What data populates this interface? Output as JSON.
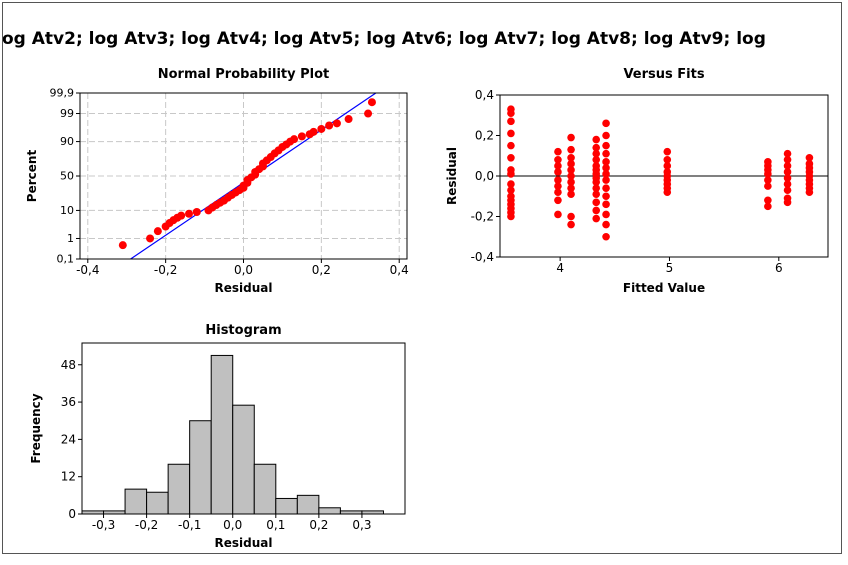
{
  "figure": {
    "suptitle": "og Atv2; log Atv3; log Atv4; log Atv5; log Atv6; log Atv7; log Atv8; log Atv9; log"
  },
  "colors": {
    "point": "#ff0000",
    "fit_line": "#0000ff",
    "bar_fill": "#c0c0c0",
    "grid": "#c8c8c8"
  },
  "chart_data": [
    {
      "type": "scatter",
      "title": "Normal Probability Plot",
      "xlabel": "Residual",
      "ylabel": "Percent",
      "xlim": [
        -0.42,
        0.42
      ],
      "y_scale": "normal-probability",
      "x_ticks": [
        "-0,4",
        "-0,2",
        "0,0",
        "0,2",
        "0,4"
      ],
      "y_ticks": [
        "0,1",
        "1",
        "10",
        "50",
        "90",
        "99",
        "99,9"
      ],
      "grid": true,
      "fit_line": {
        "start": [
          -0.29,
          0.1
        ],
        "end": [
          0.34,
          99.9
        ]
      },
      "points": [
        [
          -0.31,
          0.5
        ],
        [
          -0.24,
          1.0
        ],
        [
          -0.22,
          2.0
        ],
        [
          -0.2,
          3.0
        ],
        [
          -0.19,
          4.0
        ],
        [
          -0.18,
          5.0
        ],
        [
          -0.17,
          6.0
        ],
        [
          -0.16,
          7.0
        ],
        [
          -0.14,
          8.0
        ],
        [
          -0.12,
          9.0
        ],
        [
          -0.09,
          10.0
        ],
        [
          -0.08,
          12.0
        ],
        [
          -0.07,
          14.0
        ],
        [
          -0.06,
          16.0
        ],
        [
          -0.05,
          18.0
        ],
        [
          -0.04,
          21.0
        ],
        [
          -0.03,
          24.0
        ],
        [
          -0.02,
          27.0
        ],
        [
          -0.01,
          30.0
        ],
        [
          0.0,
          33.0
        ],
        [
          0.0,
          36.0
        ],
        [
          0.01,
          40.0
        ],
        [
          0.01,
          44.0
        ],
        [
          0.02,
          48.0
        ],
        [
          0.03,
          52.0
        ],
        [
          0.03,
          56.0
        ],
        [
          0.04,
          60.0
        ],
        [
          0.05,
          64.0
        ],
        [
          0.05,
          68.0
        ],
        [
          0.06,
          72.0
        ],
        [
          0.07,
          76.0
        ],
        [
          0.08,
          80.0
        ],
        [
          0.09,
          83.0
        ],
        [
          0.1,
          86.0
        ],
        [
          0.11,
          88.0
        ],
        [
          0.12,
          90.0
        ],
        [
          0.13,
          91.5
        ],
        [
          0.15,
          93.0
        ],
        [
          0.17,
          94.0
        ],
        [
          0.18,
          95.0
        ],
        [
          0.2,
          96.0
        ],
        [
          0.22,
          97.0
        ],
        [
          0.24,
          97.5
        ],
        [
          0.27,
          98.3
        ],
        [
          0.32,
          99.0
        ],
        [
          0.33,
          99.7
        ]
      ]
    },
    {
      "type": "scatter",
      "title": "Versus Fits",
      "xlabel": "Fitted Value",
      "ylabel": "Residual",
      "xlim": [
        3.45,
        6.45
      ],
      "ylim": [
        -0.4,
        0.4
      ],
      "x_ticks": [
        "4",
        "5",
        "6"
      ],
      "x_tick_values": [
        4,
        5,
        6
      ],
      "y_ticks": [
        "-0,4",
        "-0,2",
        "0,0",
        "0,2",
        "0,4"
      ],
      "y_tick_values": [
        -0.4,
        -0.2,
        0.0,
        0.2,
        0.4
      ],
      "reference_line": 0.0,
      "clusters": [
        {
          "x": 3.55,
          "residuals": [
            0.33,
            0.31,
            0.27,
            0.21,
            0.15,
            0.09,
            0.03,
            0.01,
            -0.04,
            -0.07,
            -0.1,
            -0.12,
            -0.14,
            -0.16,
            -0.18,
            -0.2
          ]
        },
        {
          "x": 3.98,
          "residuals": [
            0.12,
            0.08,
            0.05,
            0.02,
            -0.02,
            -0.05,
            -0.08,
            -0.12,
            -0.19
          ]
        },
        {
          "x": 4.1,
          "residuals": [
            0.19,
            0.13,
            0.09,
            0.06,
            0.03,
            0.0,
            -0.03,
            -0.06,
            -0.09,
            -0.2,
            -0.24
          ]
        },
        {
          "x": 4.33,
          "residuals": [
            0.18,
            0.14,
            0.11,
            0.08,
            0.05,
            0.03,
            0.01,
            -0.01,
            -0.03,
            -0.06,
            -0.09,
            -0.13,
            -0.17,
            -0.21
          ]
        },
        {
          "x": 4.42,
          "residuals": [
            0.26,
            0.2,
            0.15,
            0.11,
            0.07,
            0.04,
            0.01,
            -0.02,
            -0.06,
            -0.1,
            -0.14,
            -0.19,
            -0.24,
            -0.3
          ]
        },
        {
          "x": 4.98,
          "residuals": [
            0.12,
            0.08,
            0.05,
            0.02,
            0.0,
            -0.02,
            -0.04,
            -0.06,
            -0.08
          ]
        },
        {
          "x": 5.9,
          "residuals": [
            0.07,
            0.05,
            0.03,
            0.01,
            -0.02,
            -0.05,
            -0.12,
            -0.15
          ]
        },
        {
          "x": 6.08,
          "residuals": [
            0.11,
            0.08,
            0.05,
            0.02,
            -0.01,
            -0.04,
            -0.07,
            -0.11,
            -0.13
          ]
        },
        {
          "x": 6.28,
          "residuals": [
            0.09,
            0.06,
            0.04,
            0.02,
            0.0,
            -0.02,
            -0.04,
            -0.06,
            -0.08
          ]
        }
      ]
    },
    {
      "type": "bar",
      "title": "Histogram",
      "xlabel": "Residual",
      "ylabel": "Frequency",
      "bin_width": 0.05,
      "bin_centers": [
        -0.325,
        -0.275,
        -0.225,
        -0.175,
        -0.125,
        -0.075,
        -0.025,
        0.025,
        0.075,
        0.125,
        0.175,
        0.225,
        0.275,
        0.325,
        0.375
      ],
      "values": [
        1,
        1,
        8,
        7,
        16,
        30,
        51,
        35,
        16,
        5,
        6,
        2,
        1,
        1,
        0
      ],
      "xlim": [
        -0.35,
        0.4
      ],
      "ylim": [
        0,
        55
      ],
      "x_ticks": [
        "-0,3",
        "-0,2",
        "-0,1",
        "0,0",
        "0,1",
        "0,2",
        "0,3"
      ],
      "x_tick_values": [
        -0.3,
        -0.2,
        -0.1,
        0.0,
        0.1,
        0.2,
        0.3
      ],
      "y_ticks": [
        "0",
        "12",
        "24",
        "36",
        "48"
      ],
      "y_tick_values": [
        0,
        12,
        24,
        36,
        48
      ]
    }
  ]
}
